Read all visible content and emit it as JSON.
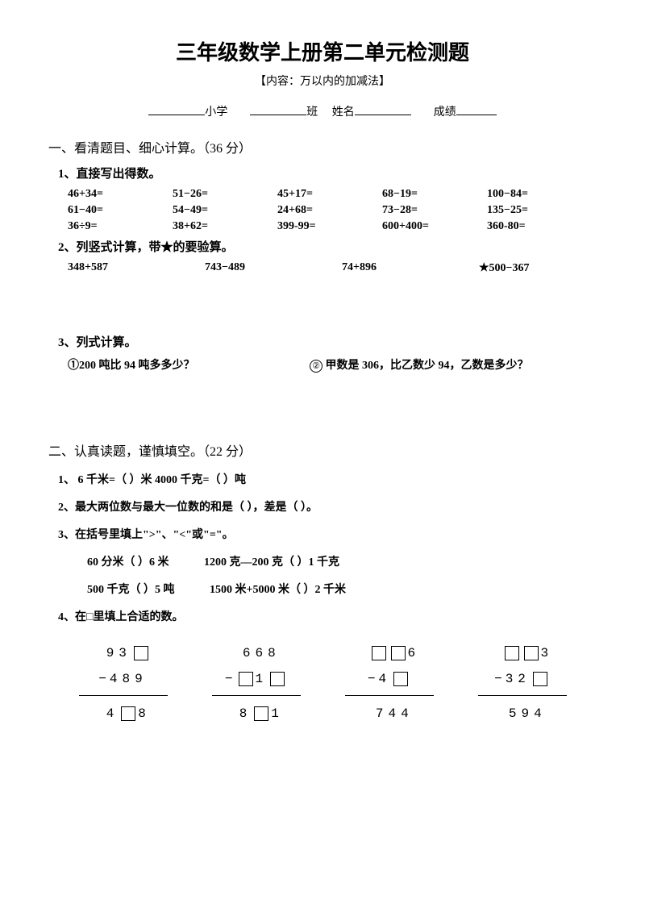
{
  "title": "三年级数学上册第二单元检测题",
  "subtitle": "【内容：万以内的加减法】",
  "info": {
    "school_suffix": "小学",
    "class_suffix": "班",
    "name_label": "姓名",
    "score_label": "成绩"
  },
  "section1": {
    "header": "一、看清题目、细心计算。（36 分）",
    "sub1": "1、直接写出得数。",
    "row1": [
      "46+34=",
      "51−26=",
      "45+17=",
      "68−19=",
      "100−84="
    ],
    "row2": [
      "61−40=",
      "54−49=",
      "24+68=",
      "73−28=",
      "135−25="
    ],
    "row3": [
      "36÷9=",
      "38+62=",
      "399-99=",
      "600+400=",
      "360-80="
    ],
    "sub2": "2、列竖式计算，带★的要验算。",
    "vertical": [
      "348+587",
      "743−489",
      "74+896",
      "★500−367"
    ],
    "sub3": "3、列式计算。",
    "word1_num": "①",
    "word1": "200 吨比 94 吨多多少？",
    "word2_num": "②",
    "word2": " 甲数是 306，比乙数少 94，乙数是多少？"
  },
  "section2": {
    "header": "二、认真读题，谨慎填空。（22 分）",
    "item1": "1、 6 千米=（  ）米      4000 千克=（  ）吨",
    "item2": "2、最大两位数与最大一位数的和是（  ），差是（  ）。",
    "item3": "3、在括号里填上\">\"、\"<\"或\"=\"。",
    "comp1a": "60 分米（  ）6 米",
    "comp1b": "1200 克—200 克（  ）1 千克",
    "comp2a": "500 千克（  ）5 吨",
    "comp2b": "1500 米+5000 米（  ）2 千米",
    "item4": "4、在□里填上合适的数。",
    "box_problems": [
      {
        "top": [
          "9",
          "3",
          "□"
        ],
        "mid_op": "−",
        "mid": [
          "4",
          "8",
          "9"
        ],
        "bot": [
          "4",
          "□",
          "8"
        ]
      },
      {
        "top": [
          "6",
          "6",
          "8"
        ],
        "mid_op": "−",
        "mid": [
          "□",
          "1",
          "□"
        ],
        "bot": [
          "8",
          "□",
          "1"
        ]
      },
      {
        "top": [
          "□",
          "□",
          "6"
        ],
        "mid_op": "−",
        "mid": [
          "4",
          "□"
        ],
        "bot": [
          "7",
          "4",
          "4"
        ]
      },
      {
        "top": [
          "□",
          "□",
          "3"
        ],
        "mid_op": "−",
        "mid": [
          "3",
          "2",
          "□"
        ],
        "bot": [
          "5",
          "9",
          "4"
        ]
      }
    ]
  }
}
